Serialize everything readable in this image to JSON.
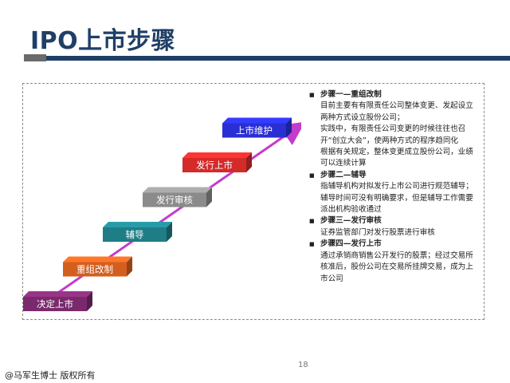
{
  "slide": {
    "title": "IPO上市步骤",
    "page_number": "18",
    "footer": "@马军生博士 版权所有"
  },
  "colors": {
    "title": "#1f3f66",
    "rule": "#1f3f66",
    "arrow": "#c33ccc",
    "step_1": "#7a2a6c",
    "step_2": "#d35f1f",
    "step_3": "#1f7d86",
    "step_4": "#8b8b8b",
    "step_5": "#d42a2a",
    "step_6": "#2a2fd4"
  },
  "diagram": {
    "steps": [
      {
        "label": "决定上市"
      },
      {
        "label": "重组改制"
      },
      {
        "label": "辅导"
      },
      {
        "label": "发行审核"
      },
      {
        "label": "发行上市"
      },
      {
        "label": "上市维护"
      }
    ]
  },
  "notes": {
    "items": [
      {
        "heading": "步骤一—重组改制",
        "lines": [
          "目前主要有有限责任公司整体变更、发起设立两种方式设立股份公司；",
          "实践中，有限责任公司变更的时候往往也召开“创立大会”，使两种方式的程序趋同化",
          "根据有关规定，整体变更成立股份公司，业绩可以连续计算"
        ]
      },
      {
        "heading": "步骤二—辅导",
        "lines": [
          "指辅导机构对拟发行上市公司进行规范辅导；",
          "辅导时间可没有明确要求，但是辅导工作需要派出机构验收通过"
        ]
      },
      {
        "heading": "步骤三—发行审核",
        "lines": [
          "证券监管部门对发行股票进行审核"
        ]
      },
      {
        "heading": "步骤四—发行上市",
        "lines": [
          "通过承销商销售公开发行的股票；经过交易所核准后，股份公司在交易所挂牌交易，成为上市公司"
        ]
      }
    ]
  }
}
